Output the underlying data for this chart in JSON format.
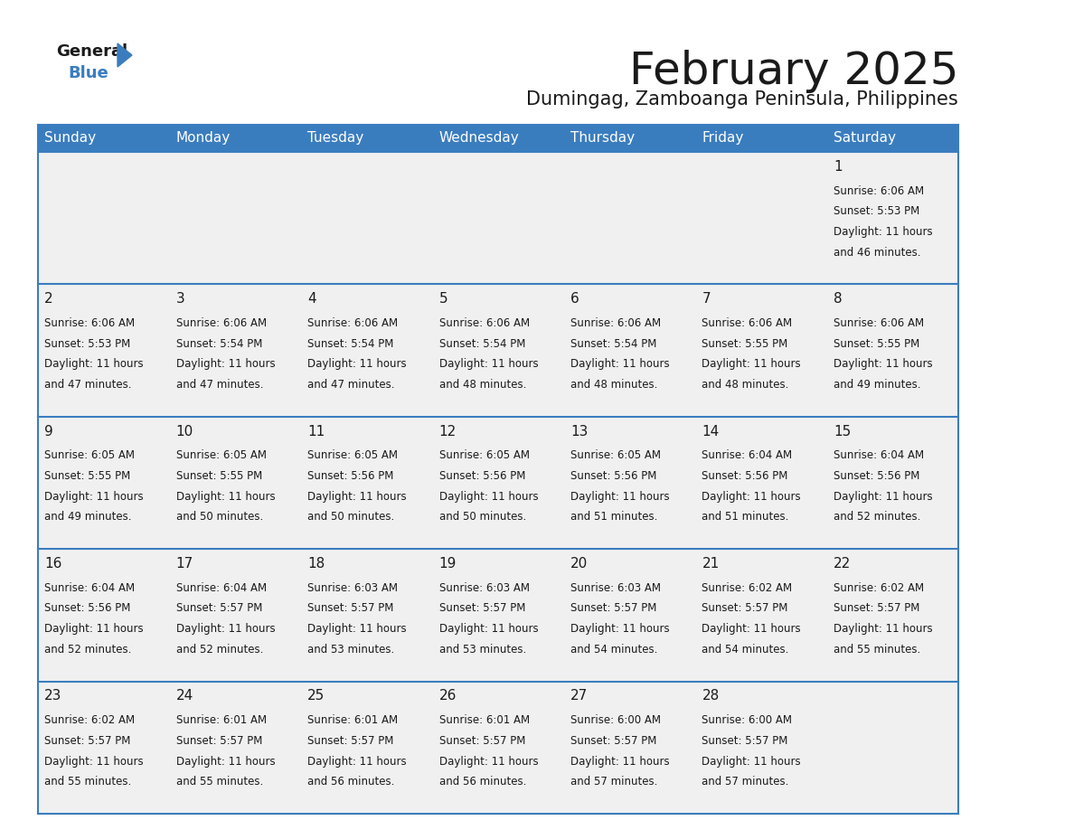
{
  "title": "February 2025",
  "subtitle": "Dumingag, Zamboanga Peninsula, Philippines",
  "header_bg": "#3a7dbf",
  "header_text": "#ffffff",
  "cell_bg": "#f0f0f0",
  "border_color": "#3a7dbf",
  "day_headers": [
    "Sunday",
    "Monday",
    "Tuesday",
    "Wednesday",
    "Thursday",
    "Friday",
    "Saturday"
  ],
  "days": [
    {
      "day": 1,
      "col": 6,
      "row": 0,
      "sunrise": "6:06 AM",
      "sunset": "5:53 PM",
      "daylight": "11 hours and 46 minutes."
    },
    {
      "day": 2,
      "col": 0,
      "row": 1,
      "sunrise": "6:06 AM",
      "sunset": "5:53 PM",
      "daylight": "11 hours and 47 minutes."
    },
    {
      "day": 3,
      "col": 1,
      "row": 1,
      "sunrise": "6:06 AM",
      "sunset": "5:54 PM",
      "daylight": "11 hours and 47 minutes."
    },
    {
      "day": 4,
      "col": 2,
      "row": 1,
      "sunrise": "6:06 AM",
      "sunset": "5:54 PM",
      "daylight": "11 hours and 47 minutes."
    },
    {
      "day": 5,
      "col": 3,
      "row": 1,
      "sunrise": "6:06 AM",
      "sunset": "5:54 PM",
      "daylight": "11 hours and 48 minutes."
    },
    {
      "day": 6,
      "col": 4,
      "row": 1,
      "sunrise": "6:06 AM",
      "sunset": "5:54 PM",
      "daylight": "11 hours and 48 minutes."
    },
    {
      "day": 7,
      "col": 5,
      "row": 1,
      "sunrise": "6:06 AM",
      "sunset": "5:55 PM",
      "daylight": "11 hours and 48 minutes."
    },
    {
      "day": 8,
      "col": 6,
      "row": 1,
      "sunrise": "6:06 AM",
      "sunset": "5:55 PM",
      "daylight": "11 hours and 49 minutes."
    },
    {
      "day": 9,
      "col": 0,
      "row": 2,
      "sunrise": "6:05 AM",
      "sunset": "5:55 PM",
      "daylight": "11 hours and 49 minutes."
    },
    {
      "day": 10,
      "col": 1,
      "row": 2,
      "sunrise": "6:05 AM",
      "sunset": "5:55 PM",
      "daylight": "11 hours and 50 minutes."
    },
    {
      "day": 11,
      "col": 2,
      "row": 2,
      "sunrise": "6:05 AM",
      "sunset": "5:56 PM",
      "daylight": "11 hours and 50 minutes."
    },
    {
      "day": 12,
      "col": 3,
      "row": 2,
      "sunrise": "6:05 AM",
      "sunset": "5:56 PM",
      "daylight": "11 hours and 50 minutes."
    },
    {
      "day": 13,
      "col": 4,
      "row": 2,
      "sunrise": "6:05 AM",
      "sunset": "5:56 PM",
      "daylight": "11 hours and 51 minutes."
    },
    {
      "day": 14,
      "col": 5,
      "row": 2,
      "sunrise": "6:04 AM",
      "sunset": "5:56 PM",
      "daylight": "11 hours and 51 minutes."
    },
    {
      "day": 15,
      "col": 6,
      "row": 2,
      "sunrise": "6:04 AM",
      "sunset": "5:56 PM",
      "daylight": "11 hours and 52 minutes."
    },
    {
      "day": 16,
      "col": 0,
      "row": 3,
      "sunrise": "6:04 AM",
      "sunset": "5:56 PM",
      "daylight": "11 hours and 52 minutes."
    },
    {
      "day": 17,
      "col": 1,
      "row": 3,
      "sunrise": "6:04 AM",
      "sunset": "5:57 PM",
      "daylight": "11 hours and 52 minutes."
    },
    {
      "day": 18,
      "col": 2,
      "row": 3,
      "sunrise": "6:03 AM",
      "sunset": "5:57 PM",
      "daylight": "11 hours and 53 minutes."
    },
    {
      "day": 19,
      "col": 3,
      "row": 3,
      "sunrise": "6:03 AM",
      "sunset": "5:57 PM",
      "daylight": "11 hours and 53 minutes."
    },
    {
      "day": 20,
      "col": 4,
      "row": 3,
      "sunrise": "6:03 AM",
      "sunset": "5:57 PM",
      "daylight": "11 hours and 54 minutes."
    },
    {
      "day": 21,
      "col": 5,
      "row": 3,
      "sunrise": "6:02 AM",
      "sunset": "5:57 PM",
      "daylight": "11 hours and 54 minutes."
    },
    {
      "day": 22,
      "col": 6,
      "row": 3,
      "sunrise": "6:02 AM",
      "sunset": "5:57 PM",
      "daylight": "11 hours and 55 minutes."
    },
    {
      "day": 23,
      "col": 0,
      "row": 4,
      "sunrise": "6:02 AM",
      "sunset": "5:57 PM",
      "daylight": "11 hours and 55 minutes."
    },
    {
      "day": 24,
      "col": 1,
      "row": 4,
      "sunrise": "6:01 AM",
      "sunset": "5:57 PM",
      "daylight": "11 hours and 55 minutes."
    },
    {
      "day": 25,
      "col": 2,
      "row": 4,
      "sunrise": "6:01 AM",
      "sunset": "5:57 PM",
      "daylight": "11 hours and 56 minutes."
    },
    {
      "day": 26,
      "col": 3,
      "row": 4,
      "sunrise": "6:01 AM",
      "sunset": "5:57 PM",
      "daylight": "11 hours and 56 minutes."
    },
    {
      "day": 27,
      "col": 4,
      "row": 4,
      "sunrise": "6:00 AM",
      "sunset": "5:57 PM",
      "daylight": "11 hours and 57 minutes."
    },
    {
      "day": 28,
      "col": 5,
      "row": 4,
      "sunrise": "6:00 AM",
      "sunset": "5:57 PM",
      "daylight": "11 hours and 57 minutes."
    }
  ],
  "n_rows": 5,
  "n_cols": 7,
  "text_color_dark": "#1a1a1a",
  "text_color_blue": "#3a7dbf",
  "title_fontsize": 36,
  "subtitle_fontsize": 15,
  "day_header_fontsize": 11,
  "day_num_fontsize": 11,
  "info_fontsize": 8.5
}
